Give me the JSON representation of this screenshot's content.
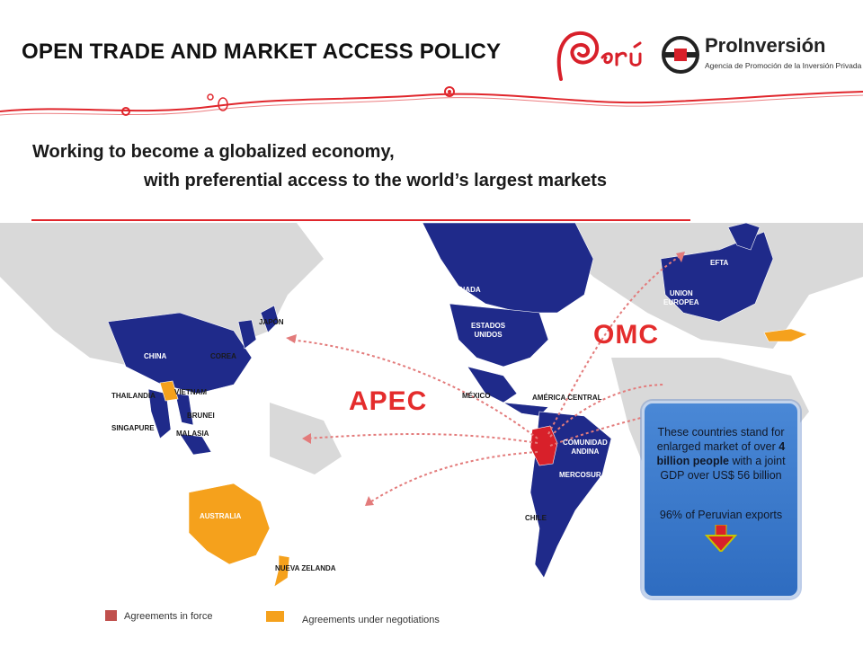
{
  "header": {
    "title": "OPEN TRADE AND MARKET ACCESS POLICY",
    "logo_peru": "Perú",
    "logo_proinversion": "ProInversión",
    "logo_proinversion_sub": "Agencia de Promoción de la Inversión Privada - Perú"
  },
  "subtitle": {
    "line1": "Working to become a globalized economy,",
    "line2": "with preferential access to the world’s largest markets"
  },
  "map": {
    "labels": {
      "efta": "EFTA",
      "ue": "UNION\nEUROPEA",
      "canada": "CANADA",
      "usa": "ESTADOS\nUNIDOS",
      "mexico": "MÉXICO",
      "am_central": "AMÉRICA CENTRAL",
      "comunidad_andina": "COMUNIDAD\nANDINA",
      "mercosur": "MERCOSUR",
      "chile": "CHILE",
      "china": "CHINA",
      "japon": "JAPÓN",
      "corea": "COREA",
      "thailandia": "THAILANDIA",
      "vietnam": "VIETNAM",
      "brunei": "BRUNEI",
      "singapure": "SINGAPURE",
      "malasia": "MALASIA",
      "australia": "AUSTRALIA",
      "nueva_zelanda": "NUEVA ZELANDA"
    },
    "apec": "APEC",
    "omc": "OMC"
  },
  "infobox": {
    "pre": "These countries stand for enlarged market of over ",
    "bold": "4 billion people",
    "post": " with a joint GDP over US$ 56 billion",
    "exports": "96% of Peruvian exports"
  },
  "legend": {
    "in_force": "Agreements in force",
    "negotiations": "Agreements under  negotiations"
  },
  "colors": {
    "in_force": "#1f2a8a",
    "negotiation": "#f5a11c",
    "peru": "#d8202a",
    "legend_in_force": "#c0504d",
    "accent_red": "#e0262c"
  }
}
